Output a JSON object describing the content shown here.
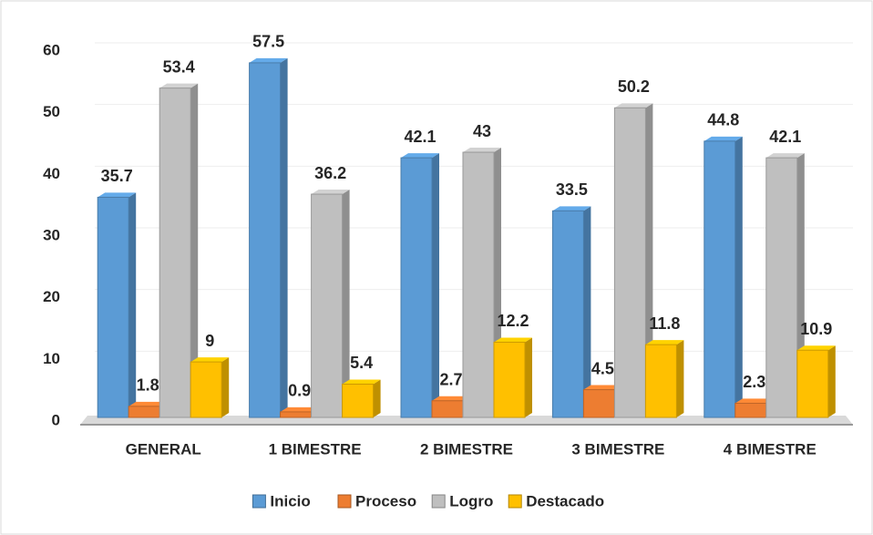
{
  "chart_data": {
    "type": "bar",
    "categories": [
      "GENERAL",
      "1 BIMESTRE",
      "2 BIMESTRE",
      "3 BIMESTRE",
      "4 BIMESTRE"
    ],
    "series": [
      {
        "name": "Inicio",
        "color": "#5b9bd5",
        "values": [
          35.7,
          57.5,
          42.1,
          33.5,
          44.8
        ]
      },
      {
        "name": "Proceso",
        "color": "#ed7d31",
        "values": [
          1.8,
          0.9,
          2.7,
          4.5,
          2.3
        ]
      },
      {
        "name": "Logro",
        "color": "#bfbfbf",
        "values": [
          53.4,
          36.2,
          43,
          50.2,
          42.1
        ]
      },
      {
        "name": "Destacado",
        "color": "#ffc000",
        "values": [
          9,
          5.4,
          12.2,
          11.8,
          10.9
        ]
      }
    ],
    "ylim": [
      0,
      60
    ],
    "yticks": [
      0,
      10,
      20,
      30,
      40,
      50,
      60
    ],
    "grid": true,
    "legend": "bottom"
  }
}
